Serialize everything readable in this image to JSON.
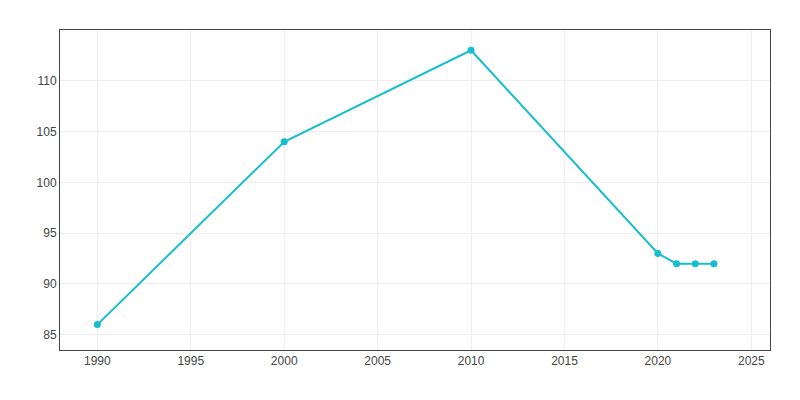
{
  "chart_data": {
    "type": "line",
    "x": [
      1990,
      2000,
      2010,
      2020,
      2021,
      2022,
      2023
    ],
    "values": [
      86,
      104,
      113,
      93,
      92,
      92,
      92
    ],
    "color": "#17becf",
    "marker": "circle",
    "xlim": [
      1988,
      2026
    ],
    "ylim": [
      83.5,
      115
    ],
    "xticks": [
      1990,
      1995,
      2000,
      2005,
      2010,
      2015,
      2020,
      2025
    ],
    "yticks": [
      85,
      90,
      95,
      100,
      105,
      110
    ],
    "grid": true
  }
}
